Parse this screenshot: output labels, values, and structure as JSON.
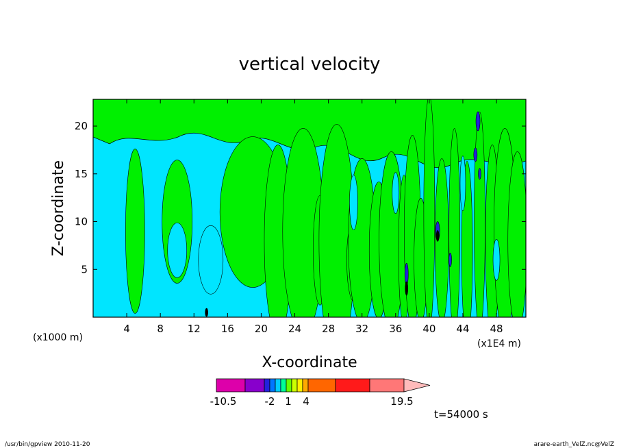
{
  "chart_data": {
    "type": "heatmap",
    "title": "vertical velocity",
    "xlabel": "X-coordinate",
    "ylabel": "Z-coordinate",
    "x_unit_left": "(x1000 m)",
    "x_unit_right": "(x1E4 m)",
    "xlim": [
      0,
      51.5
    ],
    "ylim": [
      0,
      22.8
    ],
    "x_ticks": [
      "4",
      "8",
      "12",
      "16",
      "20",
      "24",
      "28",
      "32",
      "36",
      "40",
      "44",
      "48"
    ],
    "y_ticks": [
      "5",
      "10",
      "15",
      "20"
    ],
    "time_label": "t=54000 s",
    "colorbar": {
      "colors": [
        "#dd00aa",
        "#8800cc",
        "#2222dd",
        "#0077ff",
        "#00ccff",
        "#00ff99",
        "#66ff00",
        "#ccff00",
        "#ffee00",
        "#ffaa00",
        "#ff6600",
        "#ff1a1a",
        "#ff7777",
        "#ffbbbb"
      ],
      "labels": [
        "-10.5",
        "-2",
        "1",
        "4",
        "19.5"
      ]
    },
    "field_colors": {
      "negative": "#00e5ff",
      "positive": "#00f000",
      "strong_negative": "#2222dd",
      "strong_positive": "#000000"
    }
  },
  "footer": {
    "left": "/usr/bin/gpview   2010-11-20",
    "right": "arare-earth_VelZ.nc@VelZ"
  }
}
